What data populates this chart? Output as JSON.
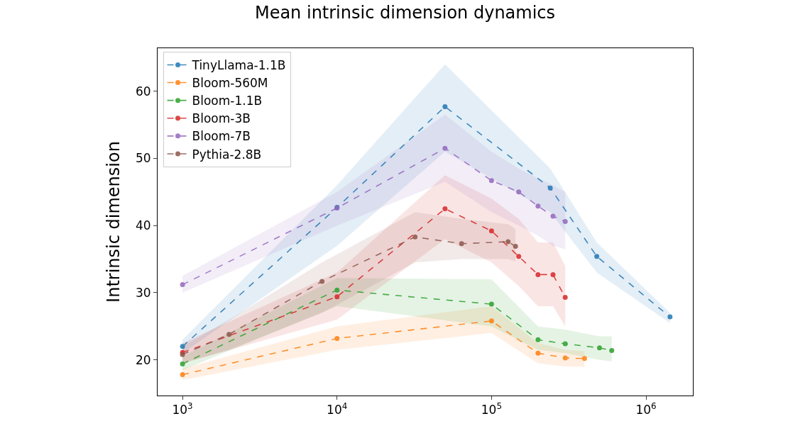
{
  "chart_data": {
    "type": "line",
    "title": "Mean intrinsic dimension dynamics",
    "ylabel": "Intrinsic dimension",
    "log": "x",
    "xlim": [
      690,
      2010000
    ],
    "ylim": [
      14.7,
      66.4
    ],
    "xticks": [
      {
        "value": 1000,
        "label": "10$^{3}$"
      },
      {
        "value": 10000,
        "label": "10$^{4}$"
      },
      {
        "value": 100000,
        "label": "10$^{5}$"
      },
      {
        "value": 1000000,
        "label": "10$^{6}$"
      }
    ],
    "yticks": [
      20,
      30,
      40,
      50,
      60
    ],
    "legend": "top left",
    "marker": "circle",
    "line_style": "dashed",
    "series": [
      {
        "name": "TinyLlama-1.1B",
        "color": "#1f77b4",
        "x": [
          1000,
          10000,
          50000,
          240000,
          480000,
          1430000
        ],
        "values": [
          22.0,
          42.7,
          57.7,
          45.6,
          35.4,
          26.4
        ],
        "lower": [
          21,
          37,
          51,
          42,
          33,
          25.5
        ],
        "upper": [
          23,
          46,
          64,
          48.5,
          37.5,
          27
        ]
      },
      {
        "name": "Bloom-560M",
        "color": "#ff7f0e",
        "x": [
          1000,
          10000,
          100000,
          200000,
          300000,
          400000
        ],
        "values": [
          17.8,
          23.2,
          25.8,
          21.0,
          20.3,
          20.2
        ],
        "lower": [
          17,
          21.5,
          24,
          19.5,
          19,
          19
        ],
        "upper": [
          18.7,
          25,
          28,
          22.5,
          21.5,
          21.3
        ]
      },
      {
        "name": "Bloom-1.1B",
        "color": "#2ca02c",
        "x": [
          1000,
          10000,
          100000,
          200000,
          300000,
          500000,
          600000
        ],
        "values": [
          19.4,
          30.4,
          28.3,
          23.0,
          22.4,
          21.8,
          21.4
        ],
        "lower": [
          18.5,
          28,
          25,
          21.5,
          21,
          20,
          19.8
        ],
        "upper": [
          20.5,
          32.2,
          32,
          25,
          24.5,
          23.5,
          23.5
        ]
      },
      {
        "name": "Bloom-3B",
        "color": "#d62728",
        "x": [
          1000,
          10000,
          50000,
          100000,
          150000,
          200000,
          250000,
          300000
        ],
        "values": [
          21.1,
          29.4,
          42.5,
          39.2,
          35.4,
          32.7,
          32.7,
          29.3
        ],
        "lower": [
          19.5,
          26,
          38,
          34.5,
          31,
          28,
          28,
          25
        ],
        "upper": [
          22.5,
          33,
          47.5,
          44,
          41,
          37.5,
          37.5,
          34
        ]
      },
      {
        "name": "Bloom-7B",
        "color": "#9467bd",
        "x": [
          1000,
          10000,
          50000,
          100000,
          150000,
          200000,
          250000,
          300000
        ],
        "values": [
          31.2,
          42.6,
          51.5,
          46.7,
          45.0,
          42.9,
          41.4,
          40.6
        ],
        "lower": [
          30,
          40,
          46.5,
          42,
          40,
          38.5,
          37,
          36.5
        ],
        "upper": [
          32.5,
          45,
          56.5,
          51,
          48.5,
          47,
          46,
          45
        ]
      },
      {
        "name": "Pythia-2.8B",
        "color": "#8c564b",
        "x": [
          1000,
          2000,
          8000,
          32000,
          64000,
          128000,
          143000
        ],
        "values": [
          20.8,
          23.8,
          31.7,
          38.3,
          37.3,
          37.6,
          36.9
        ],
        "lower": [
          19.5,
          21.5,
          27,
          34.5,
          35,
          35,
          34.7
        ],
        "upper": [
          22,
          26,
          34.5,
          42,
          41,
          40.2,
          39.5
        ]
      }
    ]
  }
}
